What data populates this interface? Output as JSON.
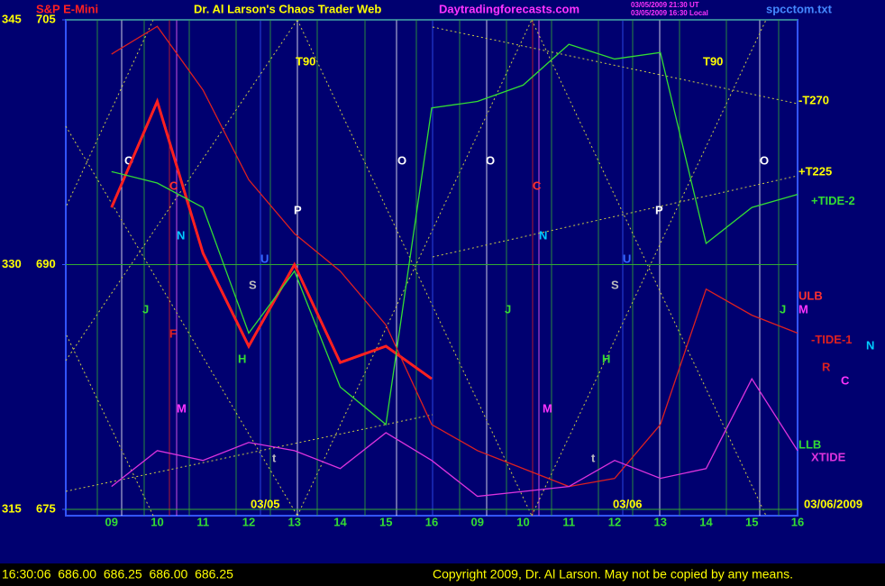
{
  "chart_data": {
    "type": "line",
    "title": "Dr. Al Larson's Chaos Trader Web",
    "site": "Daytradingforecasts.com",
    "timestamps": [
      "03/05/2009 21:30 UT",
      "03/05/2009 16:30 Local"
    ],
    "file": "spcctom.txt",
    "status": "16:30:06  686.00  686.25  686.00  686.25",
    "copyright": "Copyright 2009, Dr. Al Larson. May not be copied by any means.",
    "date_labels": [
      "03/05",
      "03/06",
      "03/06/2009"
    ],
    "categories": [
      "09",
      "10",
      "11",
      "12",
      "13",
      "14",
      "15",
      "16",
      "09",
      "10",
      "11",
      "12",
      "13",
      "14",
      "15",
      "16"
    ],
    "ylim": [
      675,
      705
    ],
    "yticks": [
      675,
      690,
      705
    ],
    "y2lim": [
      315,
      345
    ],
    "y2ticks": [
      315,
      330,
      345
    ],
    "grid": true,
    "series": [
      {
        "name": "S&P E-Mini",
        "color": "#ff2020",
        "values": [
          693.5,
          700,
          690.7,
          685,
          690,
          684,
          685,
          683,
          null,
          null,
          null,
          null,
          null,
          null,
          null,
          null
        ]
      },
      {
        "name": "+TIDE-2",
        "color": "#33dd33",
        "values": [
          695.7,
          695,
          693.5,
          685.8,
          689.6,
          682.5,
          680.2,
          699.6,
          700,
          701,
          703.5,
          702.6,
          703,
          691.3,
          693.5,
          694.3
        ]
      },
      {
        "name": "-TIDE-1",
        "color": "#dd2020",
        "values": [
          702.9,
          704.6,
          700.7,
          695.2,
          691.9,
          689.6,
          686.3,
          680.2,
          678.6,
          677.5,
          676.4,
          676.9,
          680.2,
          688.5,
          686.9,
          685.8
        ]
      },
      {
        "name": "XTIDE",
        "color": "#dd33dd",
        "values": [
          676.4,
          678.6,
          678,
          679.1,
          678.6,
          677.5,
          679.7,
          678,
          675.8,
          676.1,
          676.4,
          678,
          676.9,
          677.5,
          683,
          678.6
        ]
      }
    ],
    "annotations": [
      "T90",
      "T90",
      "O",
      "O",
      "O",
      "O",
      "P",
      "P",
      "C",
      "C",
      "N",
      "N",
      "U",
      "U",
      "S",
      "S",
      "J",
      "J",
      "J",
      "H",
      "H",
      "M",
      "M",
      "F",
      "t",
      "t",
      "-T270",
      "+T225",
      "ULB",
      "M",
      "N",
      "R",
      "C",
      "LLB"
    ]
  }
}
